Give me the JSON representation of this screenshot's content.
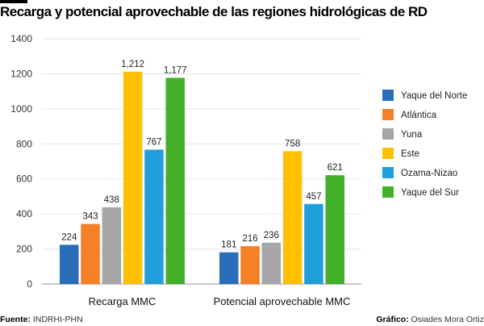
{
  "chart_data": {
    "type": "bar",
    "title": "Recarga y potencial aprovechable de las regiones hidrológicas de RD",
    "categories": [
      "Recarga MMC",
      "Potencial aprovechable MMC"
    ],
    "series": [
      {
        "name": "Yaque del Norte",
        "color": "#2a6ebb",
        "values": [
          224,
          181
        ],
        "labels": [
          "224",
          "181"
        ]
      },
      {
        "name": "Atlántica",
        "color": "#f58025",
        "values": [
          343,
          216
        ],
        "labels": [
          "343",
          "216"
        ]
      },
      {
        "name": "Yuna",
        "color": "#a6a6a6",
        "values": [
          438,
          236
        ],
        "labels": [
          "438",
          "236"
        ]
      },
      {
        "name": "Este",
        "color": "#ffc000",
        "values": [
          1212,
          758
        ],
        "labels": [
          "1,212",
          "758"
        ]
      },
      {
        "name": "Ozama-Nizao",
        "color": "#1fa0db",
        "values": [
          767,
          457
        ],
        "labels": [
          "767",
          "457"
        ]
      },
      {
        "name": "Yaque del Sur",
        "color": "#43b02a",
        "values": [
          1177,
          621
        ],
        "labels": [
          "1,177",
          "621"
        ]
      }
    ],
    "yticks": [
      "0",
      "200",
      "400",
      "600",
      "800",
      "1000",
      "1200",
      "1400"
    ],
    "ylim": [
      0,
      1400
    ],
    "xlabel": "",
    "ylabel": "",
    "grid": true,
    "legend": "right"
  },
  "footer": {
    "source_label": "Fuente:",
    "source_value": " INDRHI-PHN",
    "credit_label": "Gráfico:",
    "credit_value": " Osiades Mora Ortiz"
  }
}
